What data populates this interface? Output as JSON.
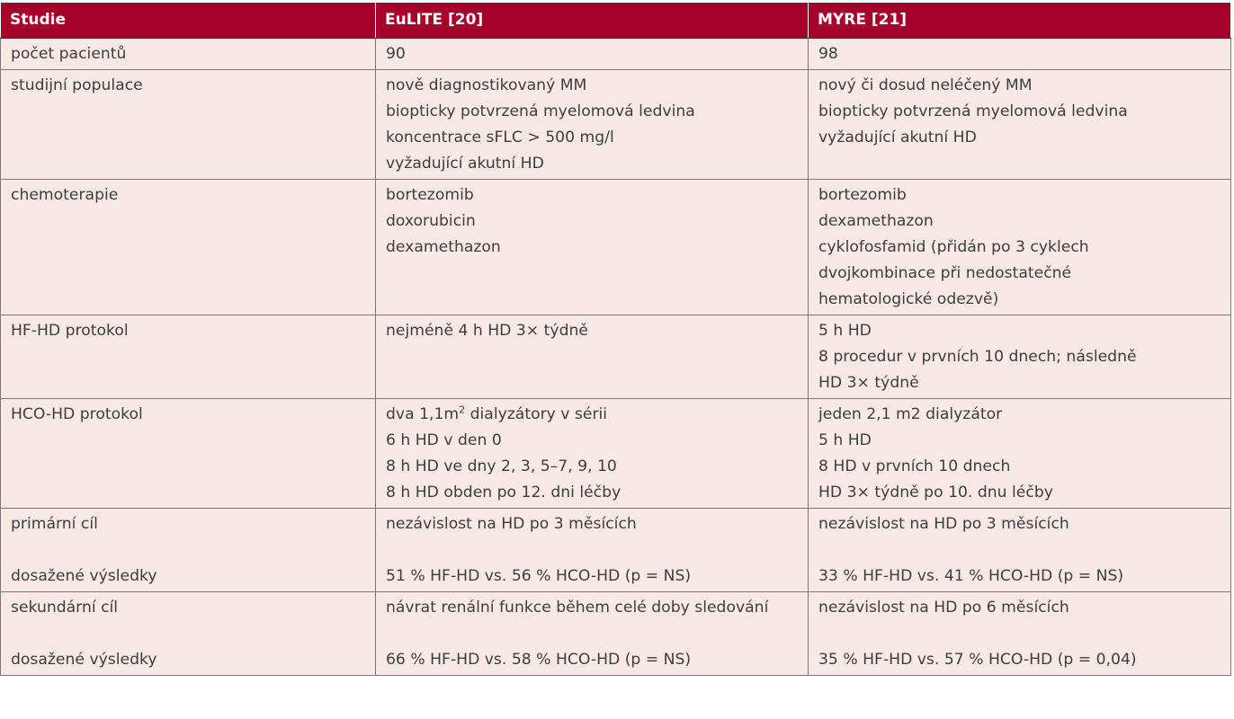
{
  "header": {
    "col1": "Studie",
    "col2": "EuLITE [20]",
    "col3": "MYRE [21]"
  },
  "rows": [
    {
      "label": [
        "počet pacientů"
      ],
      "eulite": [
        "90"
      ],
      "myre": [
        "98"
      ]
    },
    {
      "label": [
        "studijní populace"
      ],
      "eulite": [
        "nově diagnostikovaný MM",
        "biopticky potvrzená myelomová ledvina",
        "koncentrace sFLC > 500 mg/l",
        "vyžadující akutní HD"
      ],
      "myre": [
        "nový či dosud neléčený MM",
        "biopticky potvrzená myelomová ledvina",
        "vyžadující akutní HD"
      ]
    },
    {
      "label": [
        "chemoterapie"
      ],
      "eulite": [
        "bortezomib",
        "doxorubicin",
        "dexamethazon"
      ],
      "myre": [
        "bortezomib",
        "dexamethazon",
        "cyklofosfamid (přidán po 3 cyklech",
        "dvojkombinace při nedostatečné",
        "hematologické odezvě)"
      ]
    },
    {
      "label": [
        "HF-HD protokol"
      ],
      "eulite": [
        "nejméně 4 h HD 3× týdně"
      ],
      "myre": [
        "5 h HD",
        "8 procedur v prvních 10 dnech; následně",
        "HD 3× týdně"
      ]
    },
    {
      "label": [
        "HCO-HD protokol"
      ],
      "eulite_first_a": "dva 1,1m",
      "eulite_first_sup": "2",
      "eulite_first_b": " dialyzátory v sérii",
      "eulite": [
        "6 h HD v den 0",
        "8 h HD ve dny 2, 3, 5–7, 9, 10",
        "8 h HD obden po 12. dni léčby"
      ],
      "myre": [
        "jeden 2,1 m2 dialyzátor",
        "5 h HD",
        "8 HD v prvních 10 dnech",
        "HD 3× týdně po 10. dnu léčby"
      ]
    },
    {
      "label": [
        "primární cíl",
        "",
        "dosažené výsledky"
      ],
      "eulite": [
        "nezávislost na HD po 3 měsících",
        "",
        "51 % HF-HD vs. 56 % HCO-HD (p = NS)"
      ],
      "myre": [
        "nezávislost na HD po 3 měsících",
        "",
        "33 % HF-HD vs. 41 % HCO-HD (p = NS)"
      ]
    },
    {
      "label": [
        "sekundární cíl",
        "",
        "dosažené výsledky"
      ],
      "eulite": [
        "návrat renální funkce během celé doby sledování",
        "",
        "66 % HF-HD vs. 58 % HCO-HD (p = NS)"
      ],
      "myre": [
        "nezávislost na HD po 6 měsících",
        "",
        "35 % HF-HD vs. 57 % HCO-HD (p = 0,04)"
      ]
    }
  ]
}
